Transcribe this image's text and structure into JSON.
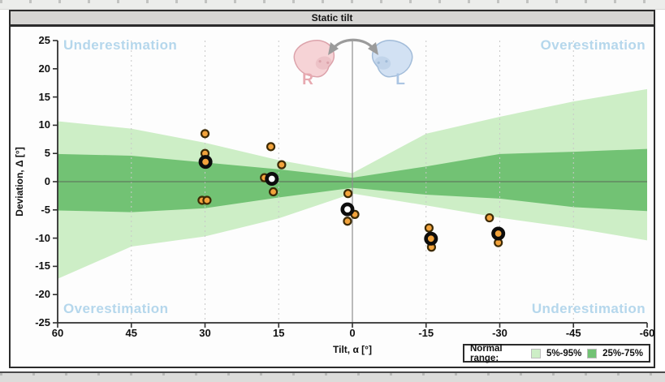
{
  "title_bar": {
    "title": "Static tilt"
  },
  "chart_data": {
    "type": "scatter",
    "title": "Static tilt",
    "xlabel": "Tilt, α [°]",
    "ylabel": "Deviation, Δ [°]",
    "xlim": [
      60,
      -60
    ],
    "ylim": [
      -25,
      25
    ],
    "x_ticks": [
      60,
      45,
      30,
      15,
      0,
      -15,
      -30,
      -45,
      -60
    ],
    "y_ticks": [
      25,
      20,
      15,
      10,
      5,
      0,
      -5,
      -10,
      -15,
      -20,
      -25
    ],
    "grid": {
      "vertical_dashed_at": [
        45,
        30,
        15,
        -15,
        -30,
        -45
      ],
      "zero_line": true,
      "center_vertical_line_at": 0
    },
    "bands": [
      {
        "name": "5%-95%",
        "color": "#cdeec6",
        "x": [
          60,
          45,
          30,
          15,
          0,
          -15,
          -30,
          -45,
          -60
        ],
        "top": [
          10.7,
          9.4,
          6.9,
          3.8,
          1.5,
          8.5,
          11.5,
          14.2,
          16.4
        ],
        "bottom": [
          -17.2,
          -11.5,
          -9.7,
          -6.5,
          -2.1,
          -4.2,
          -6.4,
          -8.2,
          -10.4
        ]
      },
      {
        "name": "25%-75%",
        "color": "#72c274",
        "x": [
          60,
          45,
          30,
          15,
          0,
          -15,
          -30,
          -45,
          -60
        ],
        "top": [
          4.9,
          4.6,
          3.4,
          2.2,
          0.7,
          2.7,
          4.9,
          5.3,
          5.8
        ],
        "bottom": [
          -5.1,
          -5.4,
          -4.7,
          -2.8,
          -1.1,
          -2.3,
          -3.0,
          -4.5,
          -5.2
        ]
      }
    ],
    "series": [
      {
        "name": "individual-trials",
        "marker": "small-dot",
        "fill": "#f2a33c",
        "outline": "#3d2b06",
        "points": [
          [
            30.0,
            8.5
          ],
          [
            30.0,
            5.0
          ],
          [
            30.6,
            -3.3
          ],
          [
            29.6,
            -3.3
          ],
          [
            16.6,
            6.2
          ],
          [
            14.4,
            3.0
          ],
          [
            17.9,
            0.7
          ],
          [
            16.1,
            -1.8
          ],
          [
            0.9,
            -2.1
          ],
          [
            -0.5,
            -5.8
          ],
          [
            1.0,
            -7.0
          ],
          [
            -15.6,
            -8.2
          ],
          [
            -16.1,
            -11.6
          ],
          [
            -27.9,
            -6.4
          ],
          [
            -29.7,
            -10.8
          ]
        ]
      },
      {
        "name": "mean-per-tilt",
        "marker": "ring",
        "ring_color": "#0d0d0d",
        "points": [
          {
            "x": 29.9,
            "y": 3.5,
            "center": "#f2a33c"
          },
          {
            "x": 16.4,
            "y": 0.5,
            "center": "#ffffff"
          },
          {
            "x": 1.0,
            "y": -4.9,
            "center": "#ffffff"
          },
          {
            "x": -16.0,
            "y": -10.1,
            "center": "#f2a33c"
          },
          {
            "x": -29.7,
            "y": -9.2,
            "center": "#f2a33c"
          }
        ]
      }
    ],
    "annotations": {
      "top_left": "Underestimation",
      "top_right": "Overestimation",
      "bottom_left": "Overestimation",
      "bottom_right": "Underestimation",
      "color": "#b5d7ec"
    },
    "legend": {
      "label": "Normal range:",
      "position": "bottom-right",
      "items": [
        {
          "label": "5%-95%",
          "color": "#cdeec6"
        },
        {
          "label": "25%-75%",
          "color": "#72c274"
        }
      ]
    },
    "head_icons": {
      "right": {
        "letter": "R",
        "fill": "#f6d3d6",
        "stroke": "#dca3ab",
        "letter_color": "#e7a9b0"
      },
      "left": {
        "letter": "L",
        "fill": "#d2e1f3",
        "stroke": "#a2bcd9",
        "letter_color": "#abc5e3"
      },
      "arrow_color": "#9b9b9b"
    }
  }
}
